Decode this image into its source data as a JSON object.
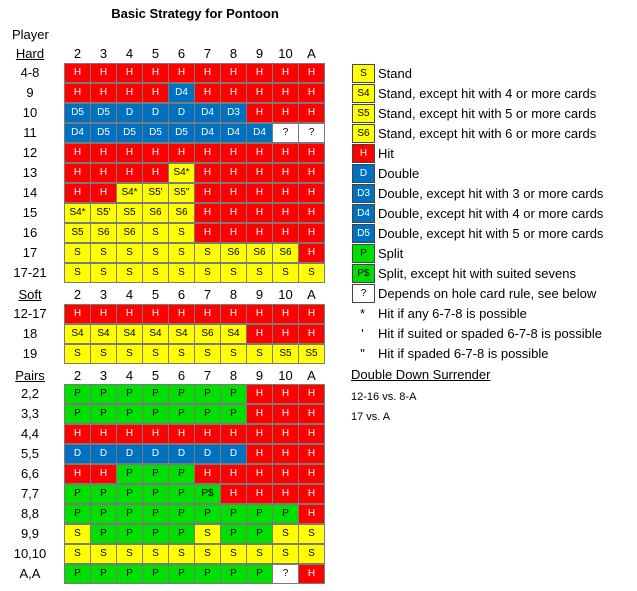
{
  "title": "Basic Strategy for Pontoon",
  "player_label": "Player",
  "dealer_cards": [
    "2",
    "3",
    "4",
    "5",
    "6",
    "7",
    "8",
    "9",
    "10",
    "A"
  ],
  "sections": [
    {
      "label": "Hard",
      "rows": [
        {
          "label": "4-8",
          "cells": [
            "H",
            "H",
            "H",
            "H",
            "H",
            "H",
            "H",
            "H",
            "H",
            "H"
          ]
        },
        {
          "label": "9",
          "cells": [
            "H",
            "H",
            "H",
            "H",
            "D4",
            "H",
            "H",
            "H",
            "H",
            "H"
          ]
        },
        {
          "label": "10",
          "cells": [
            "D5",
            "D5",
            "D",
            "D",
            "D",
            "D4",
            "D3",
            "H",
            "H",
            "H"
          ]
        },
        {
          "label": "11",
          "cells": [
            "D4",
            "D5",
            "D5",
            "D5",
            "D5",
            "D4",
            "D4",
            "D4",
            "?",
            "?"
          ]
        },
        {
          "label": "12",
          "cells": [
            "H",
            "H",
            "H",
            "H",
            "H",
            "H",
            "H",
            "H",
            "H",
            "H"
          ]
        },
        {
          "label": "13",
          "cells": [
            "H",
            "H",
            "H",
            "H",
            "S4*",
            "H",
            "H",
            "H",
            "H",
            "H"
          ]
        },
        {
          "label": "14",
          "cells": [
            "H",
            "H",
            "S4*",
            "S5'",
            "S5\"",
            "H",
            "H",
            "H",
            "H",
            "H"
          ]
        },
        {
          "label": "15",
          "cells": [
            "S4*",
            "S5'",
            "S5",
            "S6",
            "S6",
            "H",
            "H",
            "H",
            "H",
            "H"
          ]
        },
        {
          "label": "16",
          "cells": [
            "S5",
            "S6",
            "S6",
            "S",
            "S",
            "H",
            "H",
            "H",
            "H",
            "H"
          ]
        },
        {
          "label": "17",
          "cells": [
            "S",
            "S",
            "S",
            "S",
            "S",
            "S",
            "S6",
            "S6",
            "S6",
            "H"
          ]
        },
        {
          "label": "17-21",
          "cells": [
            "S",
            "S",
            "S",
            "S",
            "S",
            "S",
            "S",
            "S",
            "S",
            "S"
          ]
        }
      ]
    },
    {
      "label": "Soft",
      "rows": [
        {
          "label": "12-17",
          "cells": [
            "H",
            "H",
            "H",
            "H",
            "H",
            "H",
            "H",
            "H",
            "H",
            "H"
          ]
        },
        {
          "label": "18",
          "cells": [
            "S4",
            "S4",
            "S4",
            "S4",
            "S4",
            "S6",
            "S4",
            "H",
            "H",
            "H"
          ]
        },
        {
          "label": "19",
          "cells": [
            "S",
            "S",
            "S",
            "S",
            "S",
            "S",
            "S",
            "S",
            "S5",
            "S5"
          ]
        }
      ]
    },
    {
      "label": "Pairs",
      "rows": [
        {
          "label": "2,2",
          "cells": [
            "P",
            "P",
            "P",
            "P",
            "P",
            "P",
            "P",
            "H",
            "H",
            "H"
          ]
        },
        {
          "label": "3,3",
          "cells": [
            "P",
            "P",
            "P",
            "P",
            "P",
            "P",
            "P",
            "H",
            "H",
            "H"
          ]
        },
        {
          "label": "4,4",
          "cells": [
            "H",
            "H",
            "H",
            "H",
            "H",
            "H",
            "H",
            "H",
            "H",
            "H"
          ]
        },
        {
          "label": "5,5",
          "cells": [
            "D",
            "D",
            "D",
            "D",
            "D",
            "D",
            "D",
            "H",
            "H",
            "H"
          ]
        },
        {
          "label": "6,6",
          "cells": [
            "H",
            "H",
            "P",
            "P",
            "P",
            "H",
            "H",
            "H",
            "H",
            "H"
          ]
        },
        {
          "label": "7,7",
          "cells": [
            "P",
            "P",
            "P",
            "P",
            "P",
            "P$",
            "H",
            "H",
            "H",
            "H"
          ]
        },
        {
          "label": "8,8",
          "cells": [
            "P",
            "P",
            "P",
            "P",
            "P",
            "P",
            "P",
            "P",
            "P",
            "H"
          ]
        },
        {
          "label": "9,9",
          "cells": [
            "S",
            "P",
            "P",
            "P",
            "P",
            "S",
            "P",
            "P",
            "S",
            "S"
          ]
        },
        {
          "label": "10,10",
          "cells": [
            "S",
            "S",
            "S",
            "S",
            "S",
            "S",
            "S",
            "S",
            "S",
            "S"
          ]
        },
        {
          "label": "A,A",
          "cells": [
            "P",
            "P",
            "P",
            "P",
            "P",
            "P",
            "P",
            "P",
            "?",
            "H"
          ]
        }
      ]
    }
  ],
  "legend": [
    {
      "code": "S",
      "text": "Stand"
    },
    {
      "code": "S4",
      "text": "Stand, except hit with 4 or more cards"
    },
    {
      "code": "S5",
      "text": "Stand, except hit with 5 or more cards"
    },
    {
      "code": "S6",
      "text": "Stand, except hit with 6 or more cards"
    },
    {
      "code": "H",
      "text": "Hit"
    },
    {
      "code": "D",
      "text": "Double"
    },
    {
      "code": "D3",
      "text": "Double, except hit with 3 or more cards"
    },
    {
      "code": "D4",
      "text": "Double, except hit with 4 or more cards"
    },
    {
      "code": "D5",
      "text": "Double, except hit with 5 or more cards"
    },
    {
      "code": "P",
      "text": "Split"
    },
    {
      "code": "P$",
      "text": "Split, except hit with suited sevens"
    },
    {
      "code": "?",
      "text": "Depends on hole card rule, see below"
    }
  ],
  "notes": [
    {
      "symbol": "*",
      "text": "Hit if any 6-7-8 is possible"
    },
    {
      "symbol": "'",
      "text": "Hit if suited or spaded 6-7-8 is possible"
    },
    {
      "symbol": "\"",
      "text": "Hit if spaded 6-7-8 is possible"
    }
  ],
  "double_down_surrender": {
    "title": "Double Down Surrender",
    "lines": [
      "12-16 vs. 8-A",
      "17 vs. A"
    ]
  },
  "colors": {
    "hit": "#ff0000",
    "stand": "#ffff00",
    "double": "#0070c0",
    "split": "#00e000",
    "unknown": "#ffffff"
  }
}
